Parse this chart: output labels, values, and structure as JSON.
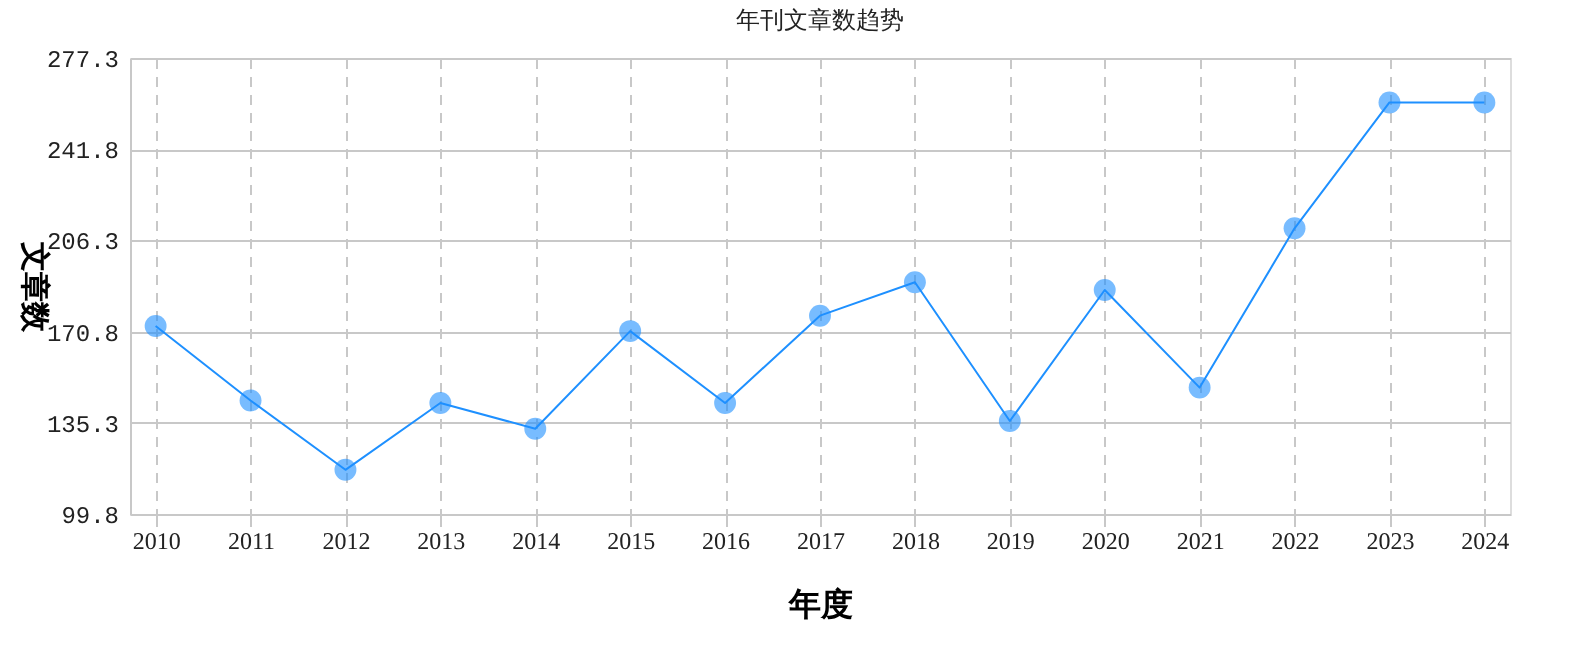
{
  "chart_data": {
    "type": "line",
    "title": "年刊文章数趋势",
    "xlabel": "年度",
    "ylabel": "文章数",
    "categories": [
      "2010",
      "2011",
      "2012",
      "2013",
      "2014",
      "2015",
      "2016",
      "2017",
      "2018",
      "2019",
      "2020",
      "2021",
      "2022",
      "2023",
      "2024"
    ],
    "series": [
      {
        "color": "#1e90ff",
        "values": [
          173,
          144,
          117,
          143,
          133,
          171,
          143,
          177,
          190,
          136,
          187,
          149,
          211,
          260,
          260
        ]
      }
    ],
    "ylim": [
      99.8,
      277.3
    ],
    "yticks": [
      99.8,
      135.3,
      170.8,
      206.3,
      241.8,
      277.3
    ],
    "grid": true,
    "marker": "circle",
    "line_style": "solid",
    "legend": false
  }
}
